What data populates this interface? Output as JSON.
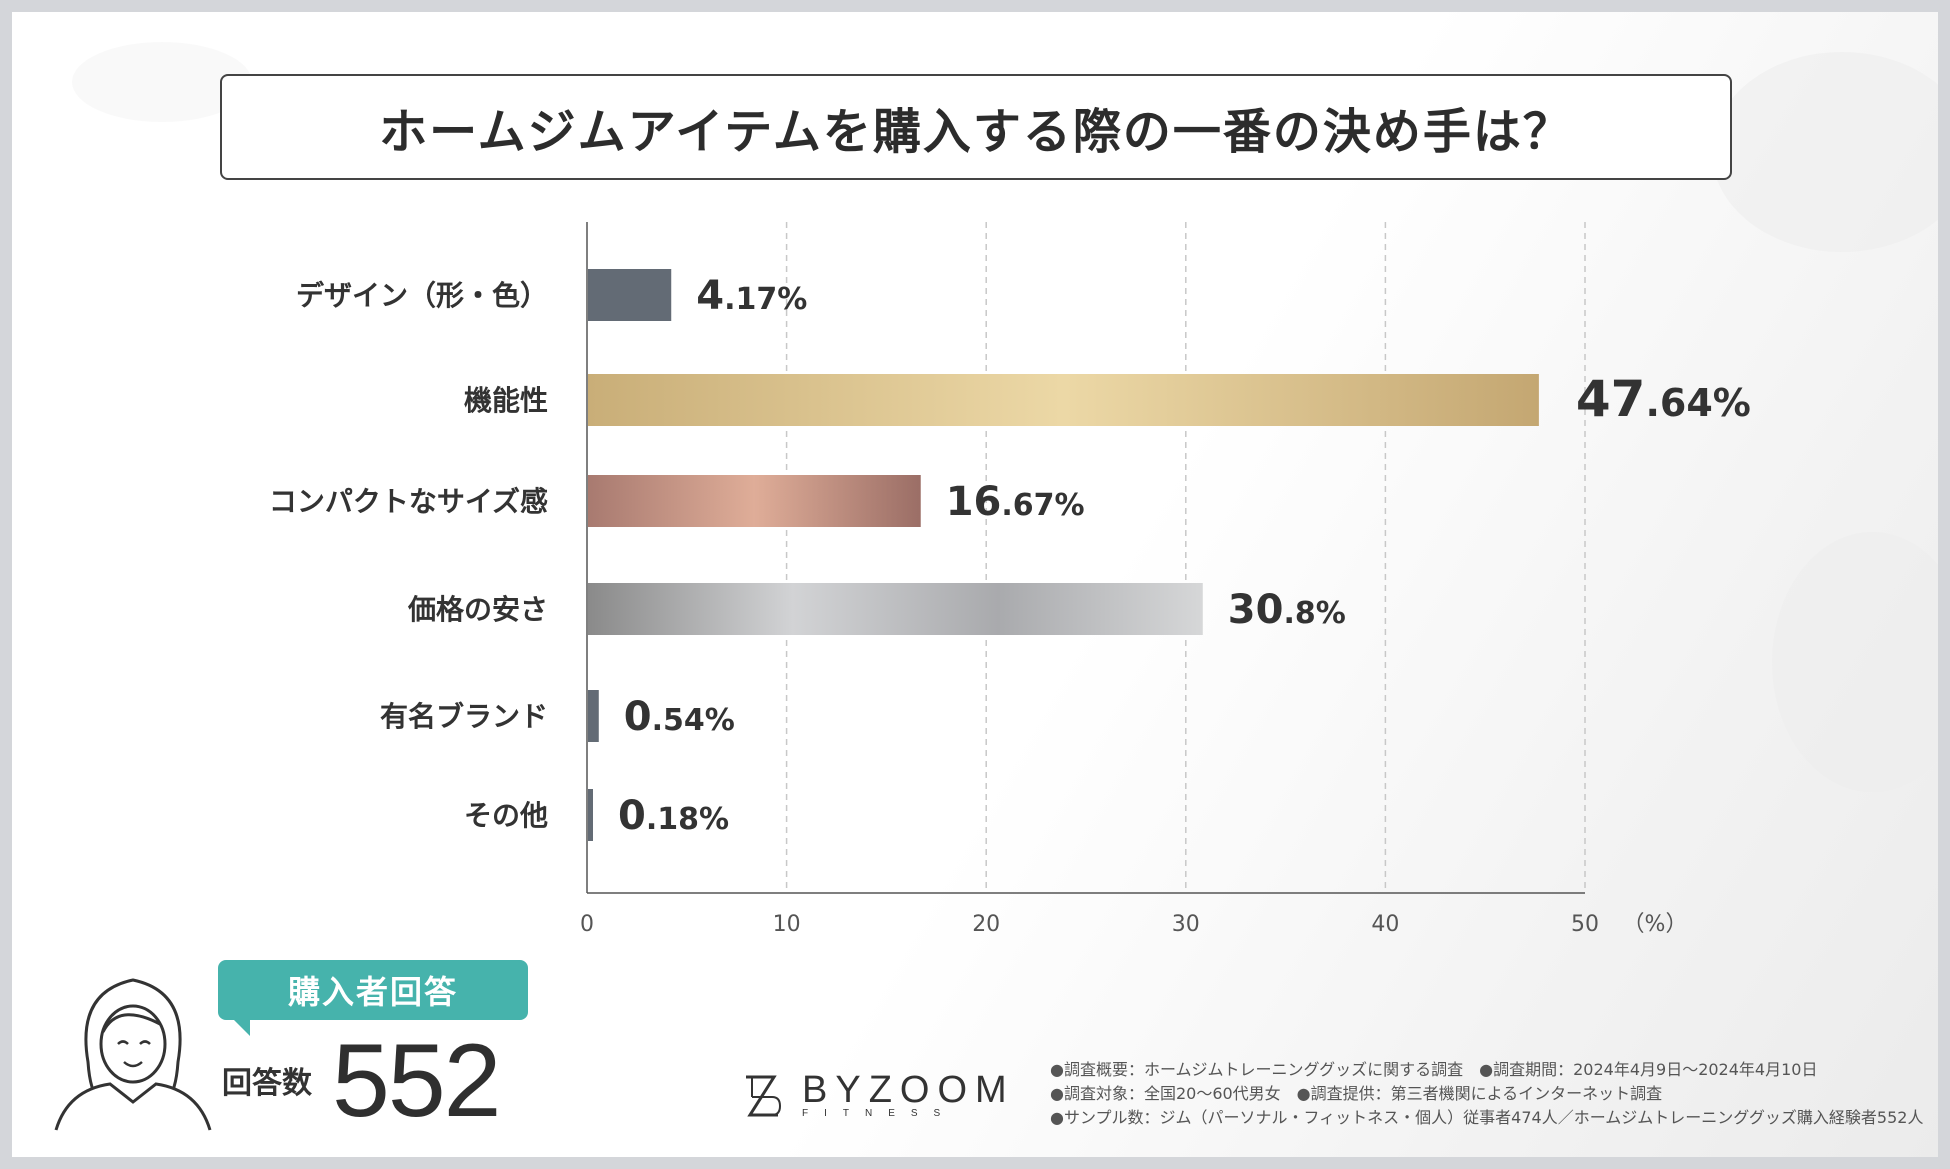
{
  "title": "ホームジムアイテムを購入する際の一番の決め手は？",
  "chart_data": {
    "type": "bar",
    "orientation": "horizontal",
    "categories": [
      "デザイン（形・色）",
      "機能性",
      "コンパクトなサイズ感",
      "価格の安さ",
      "有名ブランド",
      "その他"
    ],
    "values": [
      4.17,
      47.64,
      16.67,
      30.8,
      0.54,
      0.18
    ],
    "value_labels": [
      {
        "int": "4",
        "dec": ".17%"
      },
      {
        "int": "47",
        "dec": ".64%"
      },
      {
        "int": "16",
        "dec": ".67%"
      },
      {
        "int": "30",
        "dec": ".8%"
      },
      {
        "int": "0",
        "dec": ".54%"
      },
      {
        "int": "0",
        "dec": ".18%"
      }
    ],
    "xlim": [
      0,
      50
    ],
    "xticks": [
      0,
      10,
      20,
      30,
      40,
      50
    ],
    "x_unit": "（%）",
    "highlight_index": 1,
    "colors": {
      "highlight_label": "#a8872f",
      "gray_bar": "#636b75",
      "gold": [
        "#c9ae78",
        "#ecd8a6",
        "#c4a772"
      ],
      "bronze": [
        "#a87a70",
        "#dfad98",
        "#9b6e66"
      ],
      "silver": [
        "#8a8a8a",
        "#d2d3d5",
        "#a9aaad",
        "#d6d7d8"
      ]
    }
  },
  "respondent": {
    "badge": "購入者回答",
    "count_label": "回答数",
    "count": "552"
  },
  "logo": {
    "name": "BYZOOM",
    "sub": "FITNESS"
  },
  "notes": [
    "●調査概要：ホームジムトレーニンググッズに関する調査　●調査期間：2024年4月9日～2024年4月10日",
    "●調査対象：全国20～60代男女　●調査提供：第三者機関によるインターネット調査",
    "●サンプル数：ジム（パーソナル・フィットネス・個人）従事者474人／ホームジムトレーニンググッズ購入経験者552人"
  ]
}
